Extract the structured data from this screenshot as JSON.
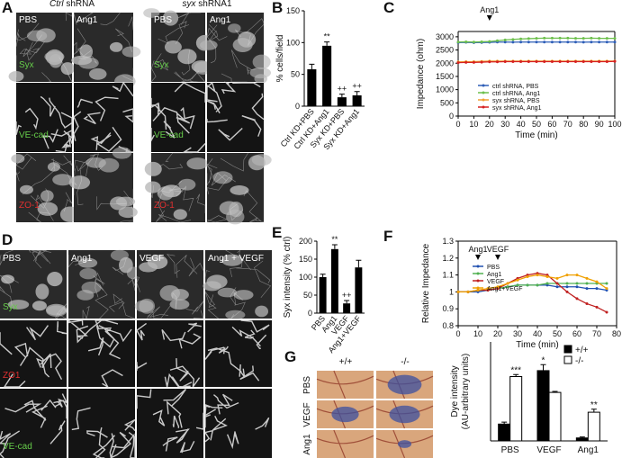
{
  "panel_letters": [
    "A",
    "B",
    "C",
    "D",
    "E",
    "F",
    "G"
  ],
  "panel_A": {
    "headers": [
      {
        "italic": "Ctrl",
        "text": "shRNA"
      },
      {
        "italic": "syx",
        "text": "shRNA1"
      }
    ],
    "columns": [
      "PBS",
      "Ang1",
      "PBS",
      "Ang1"
    ],
    "rows": [
      "Syx",
      "VE-cad",
      "ZO-1"
    ],
    "row_colors": [
      "#66cc4a",
      "#66cc4a",
      "#e03030"
    ]
  },
  "panel_D": {
    "columns": [
      "PBS",
      "Ang1",
      "VEGF",
      "Ang1 + VEGF"
    ],
    "rows": [
      "Syx",
      "ZO1",
      "VE-cad"
    ],
    "row_colors": [
      "#66cc4a",
      "#e03030",
      "#66cc4a"
    ]
  },
  "panel_G": {
    "columns": [
      "+/+",
      "-/-"
    ],
    "rows": [
      "PBS",
      "VEGF",
      "Ang1"
    ]
  },
  "chart_data": [
    {
      "type": "bar",
      "ylabel": "% cells/field",
      "categories": [
        "Ctrl KD+PBS",
        "Ctrl KD+Ang1",
        "Syx KD+PBS",
        "Syx KD+Ang1"
      ],
      "values": [
        58,
        95,
        14,
        17
      ],
      "errors": [
        8,
        6,
        5,
        6
      ],
      "bar_labels": [
        null,
        "**",
        "++",
        "++"
      ],
      "color": "#000000",
      "ylim": [
        0,
        150
      ],
      "yticks": [
        0,
        50,
        100,
        150
      ]
    },
    {
      "type": "line",
      "ylabel": "Impedance (ohm)",
      "xlabel": "Time (min)",
      "x": [
        0,
        5,
        10,
        15,
        20,
        25,
        30,
        35,
        40,
        45,
        50,
        55,
        60,
        65,
        70,
        75,
        80,
        85,
        90,
        95,
        100
      ],
      "series": [
        {
          "name": "ctrl shRNA, PBS",
          "color": "#2f5fb8",
          "values": [
            2780,
            2790,
            2780,
            2785,
            2790,
            2800,
            2800,
            2795,
            2800,
            2800,
            2800,
            2800,
            2800,
            2800,
            2800,
            2800,
            2795,
            2800,
            2800,
            2800,
            2800
          ]
        },
        {
          "name": "ctrl shRNA, Ang1",
          "color": "#6cbf4c",
          "values": [
            2800,
            2810,
            2800,
            2810,
            2820,
            2850,
            2880,
            2900,
            2920,
            2930,
            2940,
            2950,
            2950,
            2950,
            2950,
            2940,
            2940,
            2950,
            2940,
            2940,
            2940
          ]
        },
        {
          "name": "syx shRNA, PBS",
          "color": "#f0a030",
          "values": [
            2050,
            2060,
            2060,
            2070,
            2080,
            2080,
            2080,
            2080,
            2080,
            2080,
            2080,
            2080,
            2080,
            2080,
            2080,
            2080,
            2080,
            2080,
            2080,
            2080,
            2080
          ]
        },
        {
          "name": "syx shRNA, Ang1",
          "color": "#d62020",
          "values": [
            2020,
            2030,
            2030,
            2040,
            2050,
            2050,
            2060,
            2060,
            2060,
            2060,
            2060,
            2060,
            2060,
            2060,
            2060,
            2060,
            2060,
            2060,
            2060,
            2060,
            2070
          ]
        }
      ],
      "annotations": [
        {
          "text": "Ang1",
          "x": 20
        }
      ],
      "legend": "lower center",
      "xlim": [
        0,
        100
      ],
      "xticks": [
        0,
        10,
        20,
        30,
        40,
        50,
        60,
        70,
        80,
        90,
        100
      ],
      "ylim": [
        0,
        3200
      ],
      "yticks": [
        0,
        500,
        1000,
        1500,
        2000,
        2500,
        3000
      ]
    },
    {
      "type": "bar",
      "ylabel": "Syx intensity (% ctrl)",
      "categories": [
        "PBS",
        "Ang1",
        "VEGF",
        "Ang1+VEGF"
      ],
      "values": [
        100,
        178,
        27,
        127
      ],
      "errors": [
        8,
        12,
        8,
        20
      ],
      "bar_labels": [
        null,
        "**",
        "++",
        null
      ],
      "color": "#000000",
      "ylim": [
        0,
        200
      ],
      "yticks": [
        0,
        50,
        100,
        150,
        200
      ]
    },
    {
      "type": "line",
      "ylabel": "Relative Impedance",
      "xlabel": "Time (min)",
      "x": [
        0,
        5,
        10,
        15,
        20,
        25,
        30,
        35,
        40,
        45,
        50,
        55,
        60,
        65,
        70,
        75
      ],
      "series": [
        {
          "name": "PBS",
          "color": "#2050b0",
          "values": [
            1,
            1,
            1,
            1.01,
            1.02,
            1.03,
            1.04,
            1.04,
            1.04,
            1.04,
            1.03,
            1.03,
            1.03,
            1.02,
            1.02,
            1.01
          ]
        },
        {
          "name": "Ang1",
          "color": "#50b050",
          "values": [
            1,
            1,
            1.01,
            1.01,
            1.02,
            1.03,
            1.04,
            1.04,
            1.04,
            1.05,
            1.05,
            1.05,
            1.05,
            1.05,
            1.05,
            1.05
          ]
        },
        {
          "name": "VEGF",
          "color": "#c02020",
          "values": [
            1,
            1,
            1.01,
            1.01,
            1.02,
            1.05,
            1.08,
            1.1,
            1.11,
            1.1,
            1.05,
            1,
            0.96,
            0.93,
            0.91,
            0.88
          ]
        },
        {
          "name": "Ang1+VEGF",
          "color": "#f0a000",
          "values": [
            1,
            1,
            1.01,
            1.02,
            1.03,
            1.05,
            1.07,
            1.09,
            1.1,
            1.09,
            1.08,
            1.1,
            1.1,
            1.08,
            1.06,
            1.02
          ]
        }
      ],
      "annotations": [
        {
          "text": "Ang1",
          "x": 10
        },
        {
          "text": "VEGF",
          "x": 20
        }
      ],
      "legend": "upper left",
      "xlim": [
        0,
        80
      ],
      "xticks": [
        0,
        10,
        20,
        30,
        40,
        50,
        60,
        70,
        80
      ],
      "ylim": [
        0.8,
        1.3
      ],
      "yticks": [
        0.8,
        0.9,
        1,
        1.1,
        1.2,
        1.3
      ]
    },
    {
      "type": "grouped_bar",
      "ylabel": [
        "Dye intensity",
        "(AU-arbitrary units)"
      ],
      "categories": [
        "PBS",
        "VEGF",
        "Ang1"
      ],
      "series": [
        {
          "name": "+/+",
          "color": "#000000",
          "values": [
            1.7,
            7.1,
            0.3
          ],
          "errors": [
            0.2,
            0.6,
            0.1
          ],
          "bar_labels": [
            null,
            "*",
            null
          ]
        },
        {
          "name": "-/-",
          "color": "#ffffff",
          "values": [
            6.5,
            4.9,
            2.9
          ],
          "errors": [
            0.2,
            0.1,
            0.3
          ],
          "bar_labels": [
            "***",
            null,
            "**"
          ]
        }
      ],
      "legend": "upper right",
      "ylim": [
        0,
        10
      ]
    }
  ]
}
